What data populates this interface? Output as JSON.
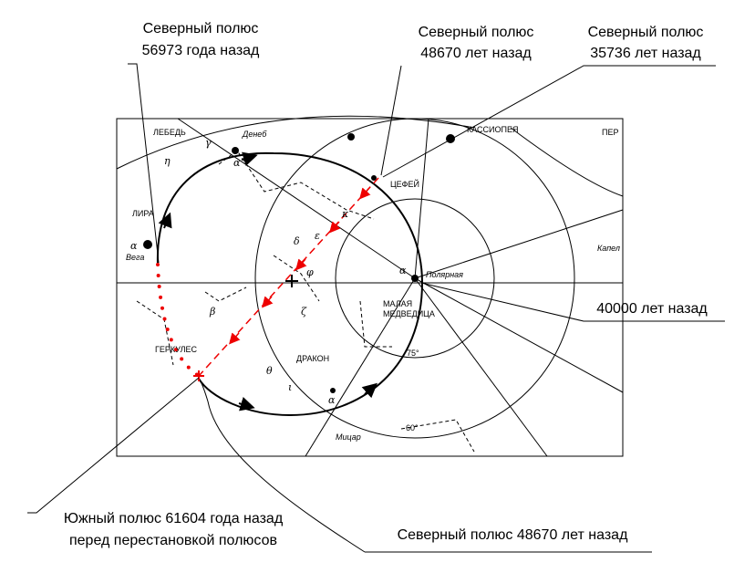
{
  "callouts": [
    {
      "lines": [
        "Северный полюс",
        "56973 года назад"
      ]
    },
    {
      "lines": [
        "Северный полюс",
        "48670 лет назад"
      ]
    },
    {
      "lines": [
        "Северный полюс",
        "35736 лет назад"
      ]
    },
    {
      "lines": [
        "40000 лет назад"
      ]
    },
    {
      "lines": [
        "Южный полюс 61604 года назад",
        "перед перестановкой полюсов"
      ]
    },
    {
      "lines": [
        "Северный полюс 48670 лет назад"
      ]
    }
  ],
  "map": {
    "labels": [
      "ЛЕБЕДЬ",
      "Денеб",
      "ЛИРА",
      "Вега",
      "КАССИОПЕЯ",
      "ПЕР",
      "ЦЕФЕЙ",
      "Полярная",
      "МАЛАЯ",
      "МЕДВЕДИЦА",
      "ДРАКОН",
      "ГЕРКУЛЕС",
      "75°",
      "60°",
      "Мицар",
      "Капел"
    ],
    "greek": [
      "α",
      "α",
      "α",
      "α",
      "β",
      "γ",
      "δ",
      "ε",
      "ζ",
      "η",
      "θ",
      "ι",
      "κ",
      "φ"
    ]
  }
}
